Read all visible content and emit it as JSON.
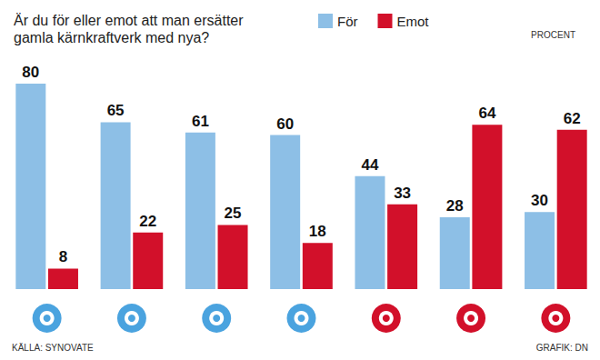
{
  "chart_data": {
    "type": "bar",
    "title": "Är du för eller emot att man ersätter gamla kärnkraftverk med nya?",
    "ylabel": "PROCENT",
    "annotations": [
      "KÄLLA: SYNOVATE",
      "GRAFIK: DN"
    ],
    "categories": [
      null,
      null,
      null,
      null,
      null,
      null,
      null
    ],
    "series": [
      {
        "name": "För",
        "color": "#8dbfe6",
        "values": [
          80,
          65,
          61,
          60,
          44,
          28,
          30
        ]
      },
      {
        "name": "Emot",
        "color": "#d2102a",
        "values": [
          8,
          22,
          25,
          18,
          33,
          64,
          62
        ]
      }
    ],
    "ylim": [
      0,
      80
    ],
    "data_labels": true,
    "tick_labels": false,
    "grid": false,
    "legend": "top"
  }
}
